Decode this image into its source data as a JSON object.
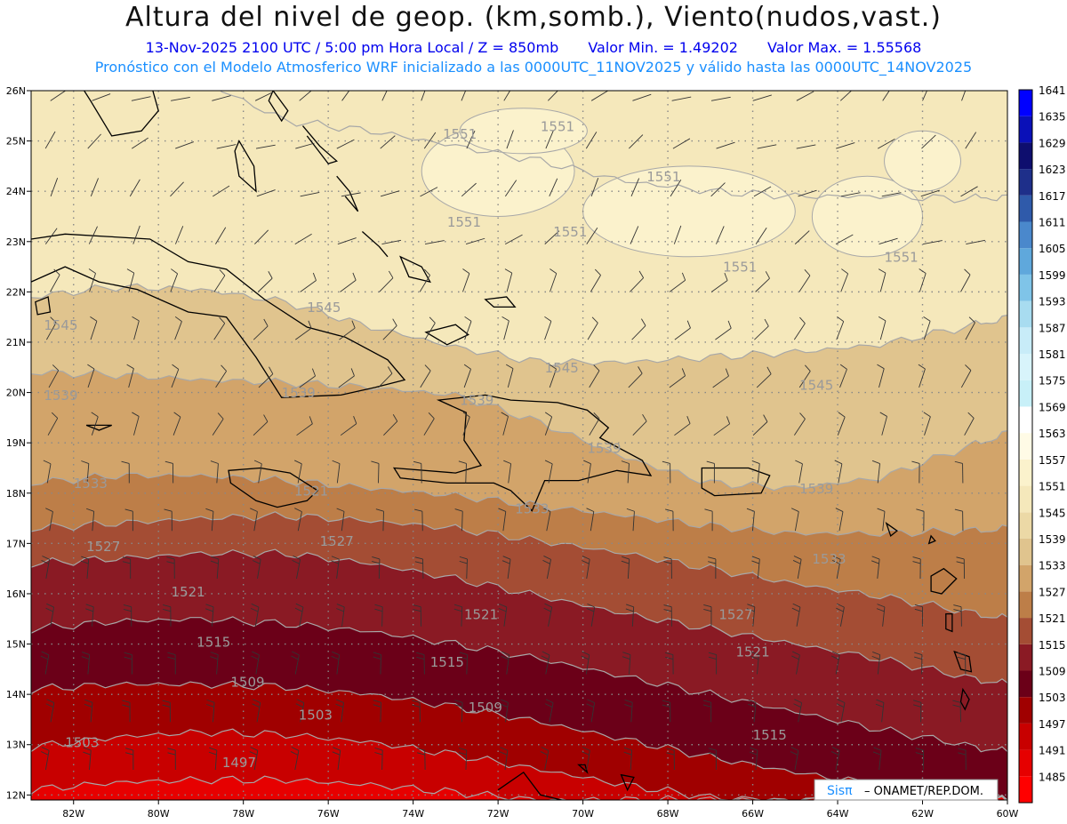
{
  "title": "Altura del nivel de geop. (km,somb.), Viento(nudos,vast.)",
  "subtitle": {
    "datetime": "13-Nov-2025  2100 UTC / 5:00 pm Hora Local / Z = 850mb",
    "min": "Valor Min. = 1.49202",
    "max": "Valor Max. = 1.55568"
  },
  "model_line": "Pronóstico con el Modelo Atmosferico WRF inicializado a las 0000UTC_11NOV2025 y válido hasta las  0000UTC_14NOV2025",
  "axes": {
    "lon_labels": [
      "82W",
      "80W",
      "78W",
      "76W",
      "74W",
      "72W",
      "70W",
      "68W",
      "66W",
      "64W",
      "62W",
      "60W"
    ],
    "lat_labels": [
      "12N",
      "13N",
      "14N",
      "15N",
      "16N",
      "17N",
      "18N",
      "19N",
      "20N",
      "21N",
      "22N",
      "23N",
      "24N",
      "25N",
      "26N"
    ]
  },
  "colorbar": {
    "levels": [
      "1485",
      "1491",
      "1497",
      "1503",
      "1509",
      "1515",
      "1521",
      "1527",
      "1533",
      "1539",
      "1545",
      "1551",
      "1557",
      "1563",
      "1569",
      "1575",
      "1581",
      "1587",
      "1593",
      "1599",
      "1605",
      "1611",
      "1617",
      "1623",
      "1629",
      "1635",
      "1641"
    ],
    "colors": [
      "#ff0000",
      "#e60000",
      "#c80000",
      "#a00000",
      "#6b0018",
      "#8a1a24",
      "#a44d34",
      "#bd7e48",
      "#d2a46a",
      "#e0c48e",
      "#ecd9a6",
      "#f5e8bb",
      "#fbf2cc",
      "#fffbe6",
      "#ffffff",
      "#c8f0f8",
      "#d8f4fb",
      "#c8ecf8",
      "#a8dcf0",
      "#7fc4e8",
      "#5fa8dc",
      "#4a88cc",
      "#2f5aaa",
      "#1e2f8a",
      "#0e0e6e",
      "#0a10b8",
      "#0000ff"
    ]
  },
  "contour_labels": [
    "1551",
    "1551",
    "1551",
    "1551",
    "1551",
    "1551",
    "1551",
    "1545",
    "1545",
    "1545",
    "1545",
    "1539",
    "1539",
    "1539",
    "1539",
    "1539",
    "1533",
    "1533",
    "1533",
    "1527",
    "1527",
    "1527",
    "1521",
    "1521",
    "1521",
    "1521",
    "1515",
    "1515",
    "1515",
    "1509",
    "1509",
    "1503",
    "1503",
    "1497"
  ],
  "credit": {
    "logo": "Sisπ",
    "text": "– ONAMET/REP.DOM."
  },
  "wind_barb_icon": "wind-barb-icon"
}
